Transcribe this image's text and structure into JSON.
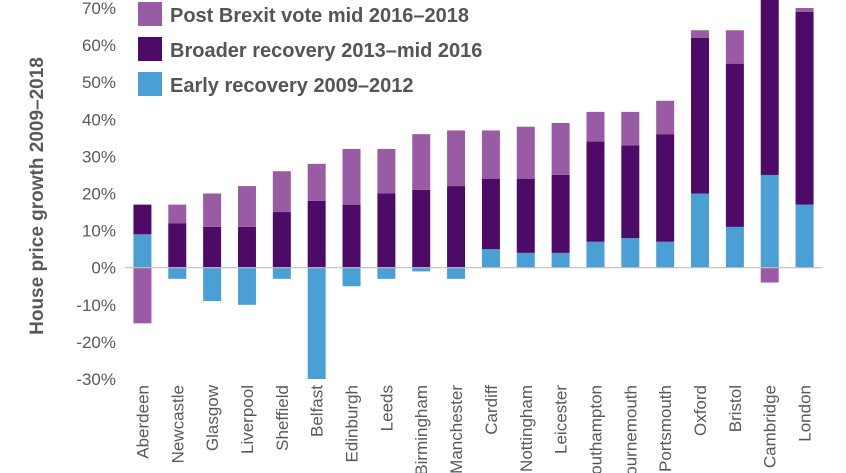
{
  "chart_data": {
    "type": "bar",
    "stacked": true,
    "ylabel": "House price growth 2009–2018",
    "ylim": [
      -30,
      70
    ],
    "y_ticks": [
      "-30%",
      "-20%",
      "-10%",
      "0%",
      "10%",
      "20%",
      "30%",
      "40%",
      "50%",
      "60%",
      "70%"
    ],
    "y_tick_values": [
      -30,
      -20,
      -10,
      0,
      10,
      20,
      30,
      40,
      50,
      60,
      70
    ],
    "legend_position": "top-left",
    "categories": [
      "Aberdeen",
      "Newcastle",
      "Glasgow",
      "Liverpool",
      "Sheffield",
      "Belfast",
      "Edinburgh",
      "Leeds",
      "Birmingham",
      "Manchester",
      "Cardiff",
      "Nottingham",
      "Leicester",
      "Southampton",
      "Bournemouth",
      "Portsmouth",
      "Oxford",
      "Bristol",
      "Cambridge",
      "London"
    ],
    "series": [
      {
        "name": "Early recovery 2009–2012",
        "color": "#4a9fd4",
        "values": [
          9,
          -3,
          -9,
          -10,
          -3,
          -30,
          -5,
          -3,
          -1,
          -3,
          5,
          4,
          4,
          7,
          8,
          7,
          20,
          11,
          25,
          17
        ]
      },
      {
        "name": "Broader recovery 2013–mid 2016",
        "color": "#4d0a67",
        "values": [
          8,
          12,
          11,
          11,
          15,
          18,
          17,
          20,
          21,
          22,
          19,
          20,
          21,
          27,
          25,
          29,
          42,
          44,
          49,
          52
        ]
      },
      {
        "name": "Post Brexit vote mid 2016–2018",
        "color": "#9a5ba5",
        "values": [
          -15,
          5,
          9,
          11,
          11,
          10,
          15,
          12,
          15,
          15,
          13,
          14,
          14,
          8,
          9,
          9,
          2,
          9,
          -4,
          1
        ]
      }
    ]
  }
}
